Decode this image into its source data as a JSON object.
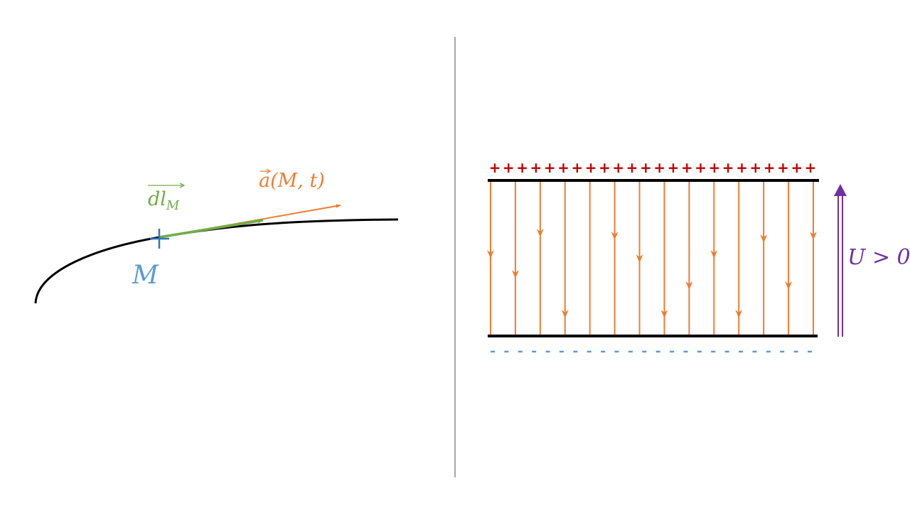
{
  "left_panel": {
    "point_label": "M",
    "tangent_vector_label": "dl",
    "tangent_vector_subscript": "M",
    "field_vector_label": "a(M, t)",
    "colors": {
      "curve": "#000000",
      "point": "#2e75b6",
      "tangent_vector": "#70ad47",
      "field_vector": "#ed7d31"
    }
  },
  "right_panel": {
    "voltage_label": "U > 0",
    "positive_charge_symbol": "+",
    "positive_charge_count": 24,
    "negative_charge_symbol": "-",
    "negative_charge_count": 24,
    "field_line_count": 14,
    "colors": {
      "plates": "#000000",
      "positive_charges": "#c00000",
      "negative_charges": "#5b9bd5",
      "field_lines": "#ed7d31",
      "voltage_arrow": "#7030a0"
    }
  },
  "divider_color": "#a6a6a6"
}
